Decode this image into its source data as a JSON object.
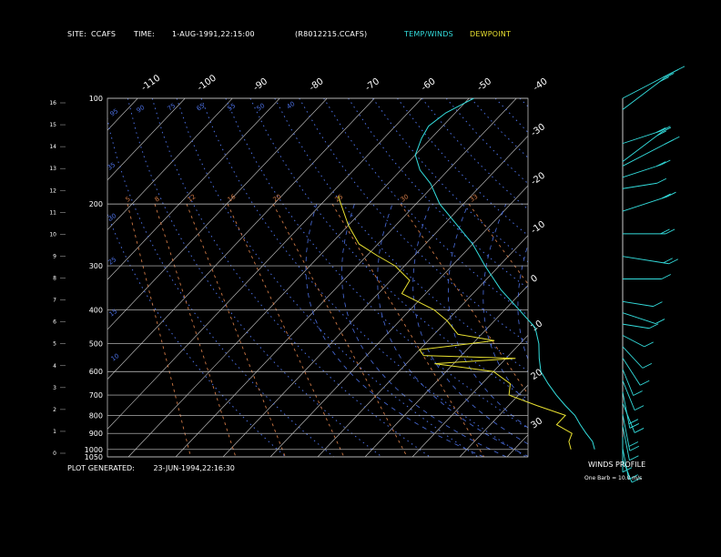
{
  "header": {
    "site_label": "SITE:",
    "site_value": "CCAFS",
    "time_label": "TIME:",
    "time_value": "1-AUG-1991,22:15:00",
    "file_id": "(R8012215.CCAFS)",
    "legend_temp": "TEMP/WINDS",
    "legend_dewpoint": "DEWPOINT"
  },
  "colors": {
    "temp": "#33dddd",
    "dewpoint": "#e8e030",
    "isobar": "#cfcfcf",
    "isotherm": "#cfcfcf",
    "mixing_ratio": "#cc7744",
    "dry_adiabat": "#4a6ee0",
    "background": "#000000"
  },
  "footer": {
    "generated_label": "PLOT GENERATED:",
    "generated_value": "23-JUN-1994,22:16:30"
  },
  "wind_profile": {
    "title": "WINDS PROFILE",
    "scale_note": "One Barb = 10.0 m/s"
  },
  "chart_data": {
    "type": "line",
    "diagram": "skew-T log-P",
    "pressure_levels": [
      "100",
      "200",
      "300",
      "400",
      "500",
      "600",
      "700",
      "800",
      "900",
      "1000",
      "1050"
    ],
    "pressure_values": [
      100,
      200,
      300,
      400,
      500,
      600,
      700,
      800,
      900,
      1000,
      1050
    ],
    "height_km_ticks": [
      "16",
      "15",
      "14",
      "13",
      "12",
      "11",
      "10",
      "9",
      "8",
      "7",
      "6",
      "5",
      "4",
      "3",
      "2",
      "1",
      "0"
    ],
    "top_temperature_labels": [
      "-110",
      "-100",
      "-90",
      "-80",
      "-70",
      "-60",
      "-50",
      "-40"
    ],
    "right_temperature_labels": [
      "-30",
      "-20",
      "-10",
      "0",
      "10",
      "20",
      "30"
    ],
    "dry_adiabat_labels": [
      "95",
      "90",
      "75",
      "65",
      "55",
      "50",
      "40",
      "35",
      "30",
      "25",
      "15",
      "10"
    ],
    "mixing_ratio_labels": [
      "5",
      "8",
      "12",
      "16",
      "20",
      "25",
      "30",
      "33"
    ],
    "series": [
      {
        "name": "TEMP/WINDS",
        "points": [
          {
            "p": 100,
            "t": -69
          },
          {
            "p": 110,
            "t": -72
          },
          {
            "p": 120,
            "t": -73
          },
          {
            "p": 130,
            "t": -72
          },
          {
            "p": 145,
            "t": -70
          },
          {
            "p": 160,
            "t": -66
          },
          {
            "p": 175,
            "t": -61
          },
          {
            "p": 200,
            "t": -55
          },
          {
            "p": 230,
            "t": -47
          },
          {
            "p": 260,
            "t": -40
          },
          {
            "p": 300,
            "t": -33
          },
          {
            "p": 350,
            "t": -25
          },
          {
            "p": 400,
            "t": -17
          },
          {
            "p": 450,
            "t": -10
          },
          {
            "p": 500,
            "t": -6
          },
          {
            "p": 550,
            "t": -3
          },
          {
            "p": 600,
            "t": 0
          },
          {
            "p": 650,
            "t": 4
          },
          {
            "p": 700,
            "t": 8
          },
          {
            "p": 750,
            "t": 12
          },
          {
            "p": 800,
            "t": 16
          },
          {
            "p": 850,
            "t": 19
          },
          {
            "p": 900,
            "t": 22
          },
          {
            "p": 950,
            "t": 25
          },
          {
            "p": 1000,
            "t": 27
          }
        ]
      },
      {
        "name": "DEWPOINT",
        "points": [
          {
            "p": 190,
            "t": -78
          },
          {
            "p": 230,
            "t": -70
          },
          {
            "p": 260,
            "t": -64
          },
          {
            "p": 280,
            "t": -58
          },
          {
            "p": 300,
            "t": -52
          },
          {
            "p": 330,
            "t": -46
          },
          {
            "p": 360,
            "t": -45
          },
          {
            "p": 400,
            "t": -35
          },
          {
            "p": 430,
            "t": -30
          },
          {
            "p": 470,
            "t": -25
          },
          {
            "p": 490,
            "t": -16
          },
          {
            "p": 520,
            "t": -30
          },
          {
            "p": 540,
            "t": -28
          },
          {
            "p": 550,
            "t": -8
          },
          {
            "p": 570,
            "t": -24
          },
          {
            "p": 600,
            "t": -10
          },
          {
            "p": 650,
            "t": -4
          },
          {
            "p": 700,
            "t": -2
          },
          {
            "p": 750,
            "t": 6
          },
          {
            "p": 800,
            "t": 14
          },
          {
            "p": 850,
            "t": 14
          },
          {
            "p": 900,
            "t": 19
          },
          {
            "p": 950,
            "t": 20
          },
          {
            "p": 1000,
            "t": 22
          }
        ]
      }
    ],
    "winds": [
      {
        "h": 16,
        "dir": 240,
        "spd": 25
      },
      {
        "h": 15.5,
        "dir": 230,
        "spd": 22
      },
      {
        "h": 14,
        "dir": 250,
        "spd": 15
      },
      {
        "h": 13.2,
        "dir": 230,
        "spd": 20
      },
      {
        "h": 13,
        "dir": 240,
        "spd": 22
      },
      {
        "h": 12.5,
        "dir": 250,
        "spd": 15
      },
      {
        "h": 12,
        "dir": 260,
        "spd": 12
      },
      {
        "h": 11,
        "dir": 250,
        "spd": 18
      },
      {
        "h": 10,
        "dir": 270,
        "spd": 16
      },
      {
        "h": 9,
        "dir": 280,
        "spd": 18
      },
      {
        "h": 8,
        "dir": 270,
        "spd": 14
      },
      {
        "h": 7,
        "dir": 280,
        "spd": 10
      },
      {
        "h": 6.5,
        "dir": 290,
        "spd": 12
      },
      {
        "h": 6,
        "dir": 280,
        "spd": 8
      },
      {
        "h": 5.5,
        "dir": 300,
        "spd": 7
      },
      {
        "h": 5,
        "dir": 320,
        "spd": 10
      },
      {
        "h": 4.5,
        "dir": 330,
        "spd": 12
      },
      {
        "h": 4,
        "dir": 340,
        "spd": 10
      },
      {
        "h": 3.5,
        "dir": 340,
        "spd": 12
      },
      {
        "h": 3,
        "dir": 350,
        "spd": 15
      },
      {
        "h": 2.5,
        "dir": 340,
        "spd": 12
      },
      {
        "h": 2,
        "dir": 350,
        "spd": 15
      },
      {
        "h": 1.5,
        "dir": 350,
        "spd": 14
      },
      {
        "h": 1,
        "dir": 0,
        "spd": 14
      },
      {
        "h": 0.5,
        "dir": 350,
        "spd": 12
      },
      {
        "h": 0,
        "dir": 340,
        "spd": 8
      }
    ]
  }
}
